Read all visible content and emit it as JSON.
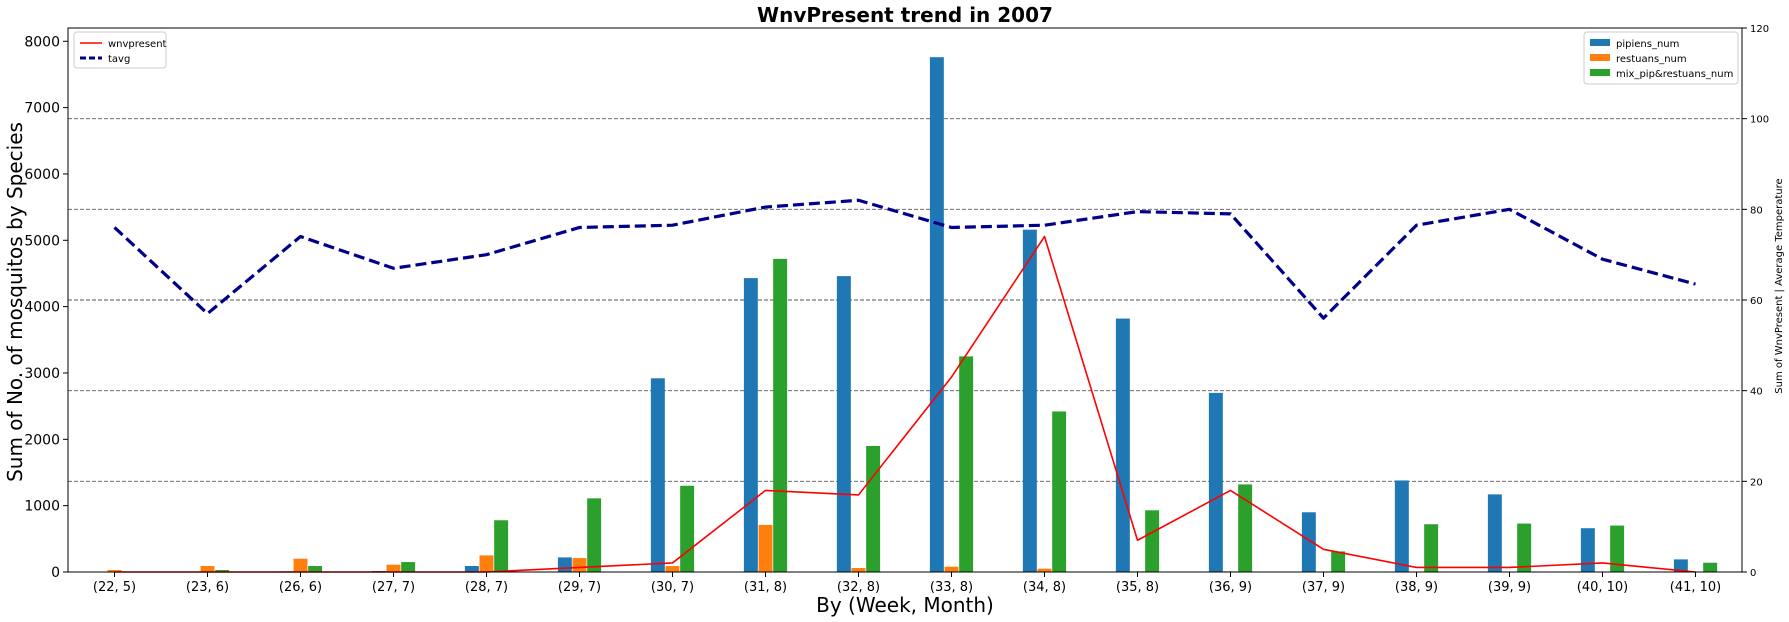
{
  "chart_data": {
    "type": "bar",
    "title": "WnvPresent trend in 2007",
    "xlabel": "By (Week, Month)",
    "ylabel": "Sum of No. of mosquitos by Species",
    "y2label": "Sum of WnvPresent | Average Temperature",
    "ylim": [
      0,
      8200
    ],
    "y2lim": [
      0,
      120
    ],
    "yticks": [
      0,
      1000,
      2000,
      3000,
      4000,
      5000,
      6000,
      7000,
      8000
    ],
    "y2ticks": [
      0,
      20,
      40,
      60,
      80,
      100,
      120
    ],
    "grid": "horizontal dashed (right axis)",
    "categories": [
      "(22, 5)",
      "(23, 6)",
      "(26, 6)",
      "(27, 7)",
      "(28, 7)",
      "(29, 7)",
      "(30, 7)",
      "(31, 8)",
      "(32, 8)",
      "(33, 8)",
      "(34, 8)",
      "(35, 8)",
      "(36, 9)",
      "(37, 9)",
      "(38, 9)",
      "(39, 9)",
      "(40, 10)",
      "(41, 10)"
    ],
    "bar_series": [
      {
        "name": "pipiens_num",
        "color": "#1f77b4",
        "values": [
          5,
          5,
          10,
          15,
          90,
          220,
          2920,
          4430,
          4460,
          7760,
          5160,
          3820,
          2700,
          900,
          1380,
          1170,
          660,
          190
        ]
      },
      {
        "name": "restuans_num",
        "color": "#ff7f0e",
        "values": [
          30,
          90,
          200,
          110,
          250,
          210,
          90,
          710,
          60,
          80,
          50,
          10,
          10,
          5,
          5,
          5,
          5,
          5
        ]
      },
      {
        "name": "mix_pip&restuans_num",
        "color": "#2ca02c",
        "values": [
          5,
          30,
          90,
          150,
          780,
          1110,
          1300,
          4720,
          1900,
          3250,
          2420,
          930,
          1320,
          310,
          720,
          730,
          700,
          140
        ]
      }
    ],
    "line_series": [
      {
        "name": "wnvpresent",
        "color": "#ff0000",
        "style": "solid",
        "values": [
          0,
          0,
          0,
          0,
          0,
          1,
          2,
          18,
          17,
          43,
          74,
          7,
          18,
          5,
          1,
          1,
          2,
          0
        ]
      },
      {
        "name": "tavg",
        "color": "#00008b",
        "style": "dashed",
        "values": [
          76,
          57,
          74,
          67,
          70,
          76,
          76.5,
          80.5,
          82,
          76,
          76.5,
          79.5,
          79,
          56,
          76.5,
          80,
          69,
          63.5
        ]
      }
    ],
    "legend_left": "top-left",
    "legend_right": "top-right"
  }
}
